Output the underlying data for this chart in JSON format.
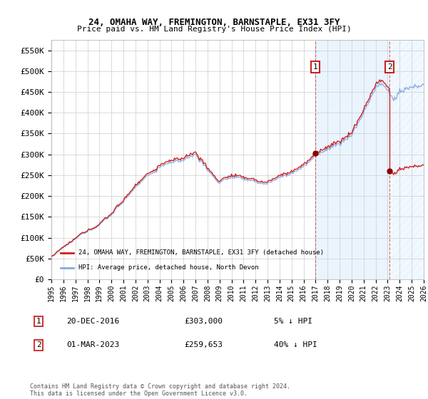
{
  "title": "24, OMAHA WAY, FREMINGTON, BARNSTAPLE, EX31 3FY",
  "subtitle": "Price paid vs. HM Land Registry's House Price Index (HPI)",
  "ylabel_ticks": [
    "£0",
    "£50K",
    "£100K",
    "£150K",
    "£200K",
    "£250K",
    "£300K",
    "£350K",
    "£400K",
    "£450K",
    "£500K",
    "£550K"
  ],
  "ytick_values": [
    0,
    50000,
    100000,
    150000,
    200000,
    250000,
    300000,
    350000,
    400000,
    450000,
    500000,
    550000
  ],
  "ylim": [
    0,
    575000
  ],
  "xlim_years": [
    1995,
    2026
  ],
  "xtick_years": [
    1995,
    1996,
    1997,
    1998,
    1999,
    2000,
    2001,
    2002,
    2003,
    2004,
    2005,
    2006,
    2007,
    2008,
    2009,
    2010,
    2011,
    2012,
    2013,
    2014,
    2015,
    2016,
    2017,
    2018,
    2019,
    2020,
    2021,
    2022,
    2023,
    2024,
    2025,
    2026
  ],
  "hpi_line_color": "#88aadd",
  "price_line_color": "#cc2222",
  "sale1_year": 2016.97,
  "sale1_price": 303000,
  "sale2_year": 2023.17,
  "sale2_price": 259653,
  "legend_house_label": "24, OMAHA WAY, FREMINGTON, BARNSTAPLE, EX31 3FY (detached house)",
  "legend_hpi_label": "HPI: Average price, detached house, North Devon",
  "footnote": "Contains HM Land Registry data © Crown copyright and database right 2024.\nThis data is licensed under the Open Government Licence v3.0.",
  "background_color": "#ffffff",
  "grid_color": "#cccccc",
  "shade_start": 2016.97,
  "shade2_start": 2023.17,
  "table_row1": [
    "1",
    "20-DEC-2016",
    "£303,000",
    "5% ↓ HPI"
  ],
  "table_row2": [
    "2",
    "01-MAR-2023",
    "£259,653",
    "40% ↓ HPI"
  ]
}
